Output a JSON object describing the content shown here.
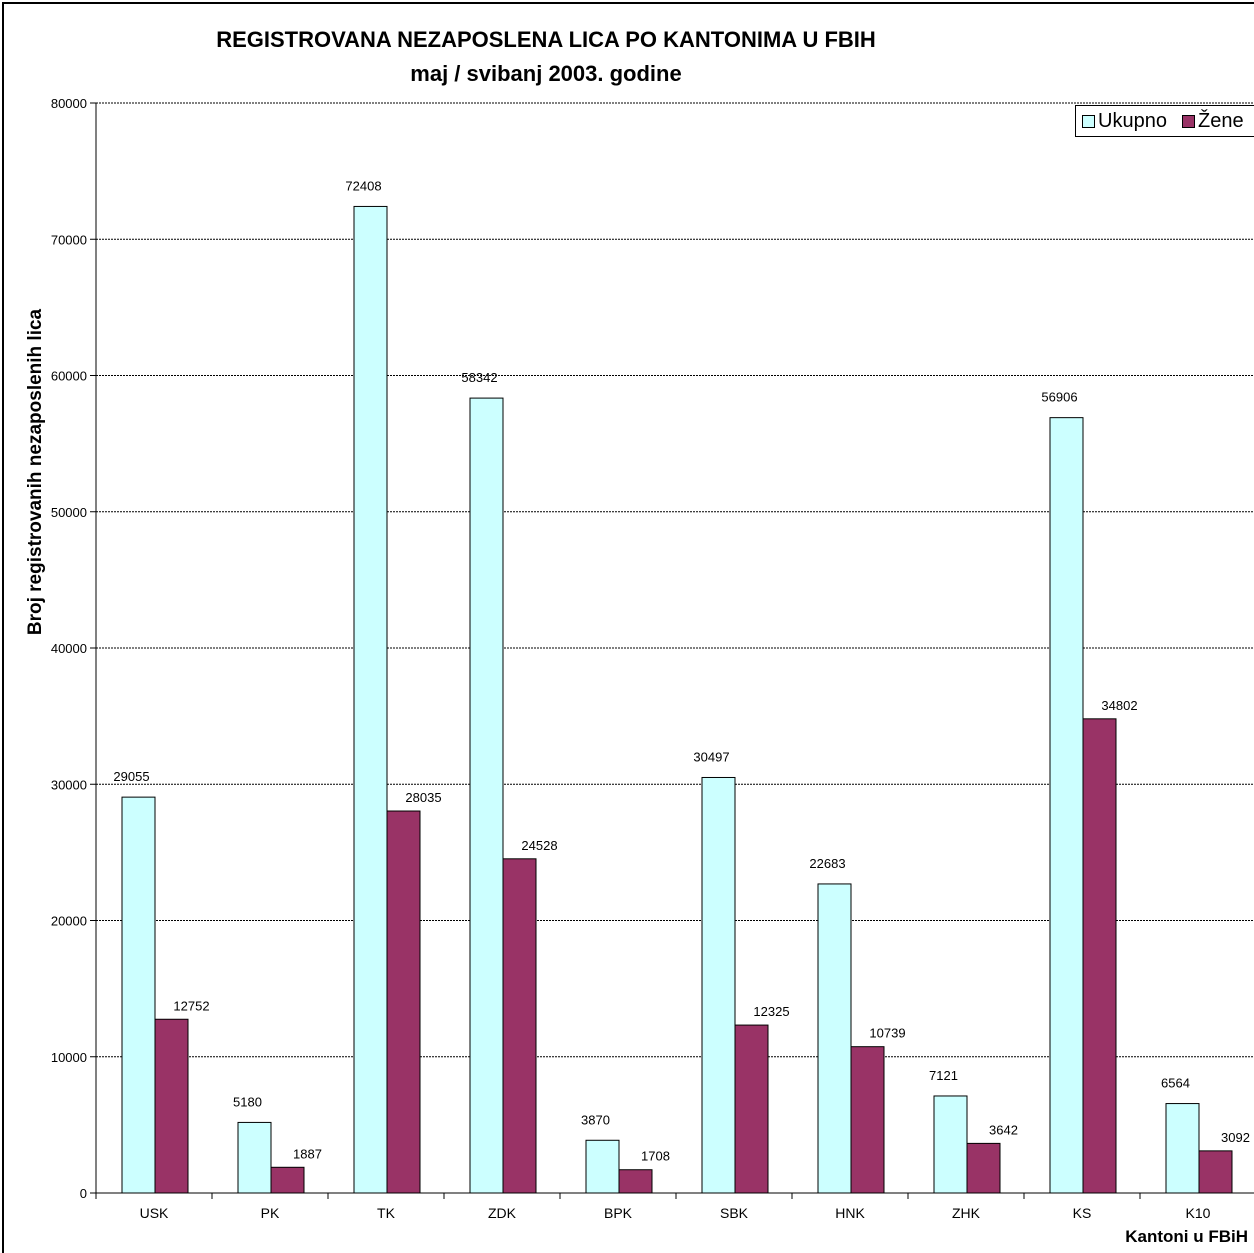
{
  "chart_data": {
    "type": "bar",
    "title": "REGISTROVANA NEZAPOSLENA LICA PO KANTONIMA U FBIH",
    "subtitle": "maj / svibanj 2003. godine",
    "xlabel": "Kantoni u FBiH",
    "ylabel": "Broj registrovanih nezaposlenih lica",
    "categories": [
      "USK",
      "PK",
      "TK",
      "ZDK",
      "BPK",
      "SBK",
      "HNK",
      "ZHK",
      "KS",
      "K10"
    ],
    "series": [
      {
        "name": "Ukupno",
        "color": "#CCFFFF",
        "values": [
          29055,
          5180,
          72408,
          58342,
          3870,
          30497,
          22683,
          7121,
          56906,
          6564
        ]
      },
      {
        "name": "Žene",
        "color": "#993366",
        "values": [
          12752,
          1887,
          28035,
          24528,
          1708,
          12325,
          10739,
          3642,
          34802,
          3092
        ]
      }
    ],
    "ylim": [
      0,
      80000
    ],
    "yticks": [
      0,
      10000,
      20000,
      30000,
      40000,
      50000,
      60000,
      70000,
      80000
    ],
    "grid": true,
    "legend_position": "top-right"
  }
}
